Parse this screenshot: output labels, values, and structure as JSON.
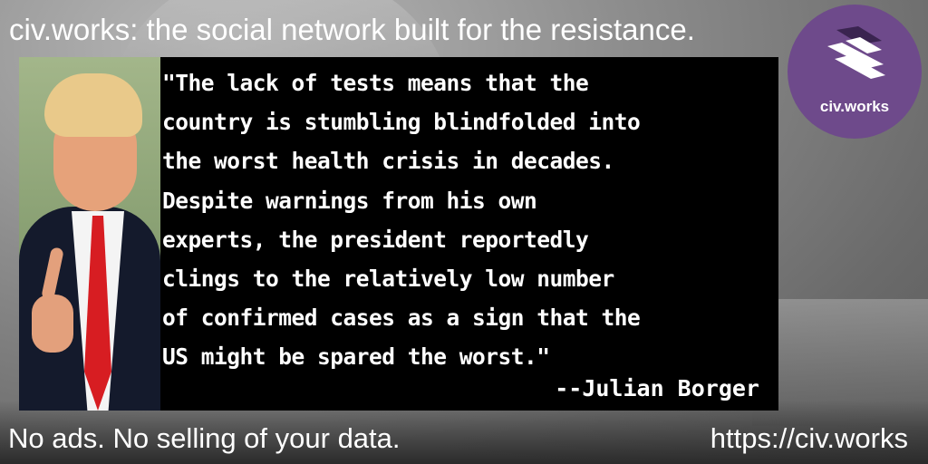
{
  "header": {
    "text": "civ.works: the social network built for the resistance."
  },
  "quote": {
    "text": "\"The lack of tests means that the\ncountry is stumbling blindfolded into\nthe worst health crisis in decades.\nDespite warnings from his own\nexperts, the president reportedly\nclings to the relatively low number\nof confirmed cases as a sign that the\nUS might be spared the worst.\"",
    "attribution": "--Julian Borger"
  },
  "logo": {
    "text": "civ.works",
    "icon": "civ-works-logo-icon",
    "color": "#6e4a8b"
  },
  "footer": {
    "left": "No ads. No selling of your data.",
    "right": "https://civ.works"
  }
}
